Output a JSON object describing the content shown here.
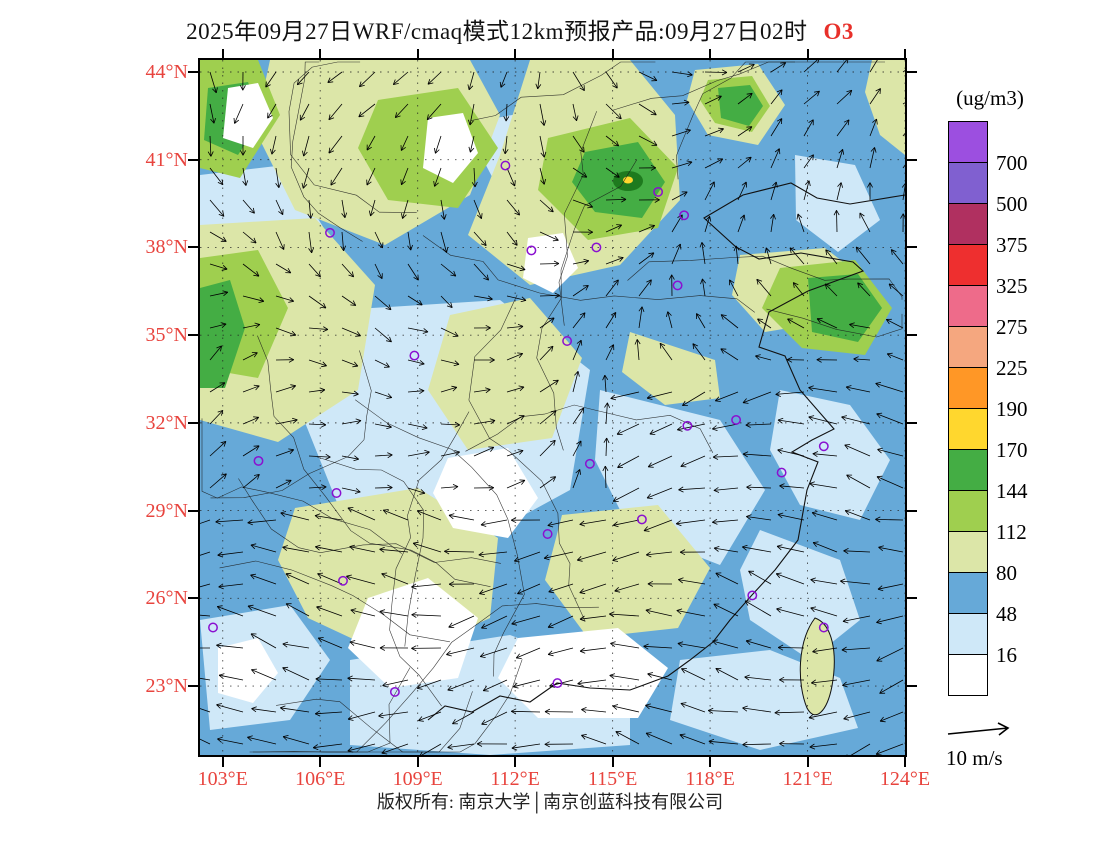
{
  "title": {
    "main": "2025年09月27日WRF/cmaq模式12km预报产品:09月27日02时",
    "species": "O3",
    "species_color": "#e8302a"
  },
  "colorbar": {
    "unit_label": "(ug/m3)",
    "labels_top_to_bottom": [
      "700",
      "500",
      "375",
      "325",
      "275",
      "225",
      "190",
      "170",
      "144",
      "112",
      "80",
      "48",
      "16"
    ],
    "colors_top_to_bottom": [
      "#9c4fe0",
      "#8060d0",
      "#b03060",
      "#ee2f2f",
      "#ee6b8a",
      "#f5a77f",
      "#ff9726",
      "#ffd72e",
      "#44ad44",
      "#9fcf4f",
      "#dce6a8",
      "#66a9d8",
      "#cfe8f8",
      "#ffffff"
    ]
  },
  "axes": {
    "label_color": "#e8443e",
    "lat_labels": [
      "44°N",
      "41°N",
      "38°N",
      "35°N",
      "32°N",
      "29°N",
      "26°N",
      "23°N"
    ],
    "lon_labels": [
      "103°E",
      "106°E",
      "109°E",
      "112°E",
      "115°E",
      "118°E",
      "121°E",
      "124°E"
    ]
  },
  "wind_legend": {
    "label": "10 m/s"
  },
  "footer": {
    "copyright": "版权所有: 南京大学│南京创蓝科技有限公司"
  },
  "chart_data": {
    "type": "heatmap",
    "title": "2025年09月27日WRF/cmaq模式12km预报产品:09月27日02时 O3",
    "species": "O3",
    "units": "ug/m3",
    "model": "WRF/cmaq 12km",
    "valid_time": "2025-09-27 02时",
    "lon_range": [
      103,
      124
    ],
    "lat_range": [
      23,
      44
    ],
    "lon_ticks": [
      103,
      106,
      109,
      112,
      115,
      118,
      121,
      124
    ],
    "lat_ticks_top_to_bottom": [
      44,
      41,
      38,
      35,
      32,
      29,
      26,
      23
    ],
    "contour_levels": [
      16,
      48,
      80,
      112,
      144,
      170,
      190,
      225,
      275,
      325,
      375,
      500,
      700
    ],
    "level_colors_low_to_high": [
      "#ffffff",
      "#cfe8f8",
      "#66a9d8",
      "#dce6a8",
      "#9fcf4f",
      "#44ad44",
      "#ffd72e",
      "#ff9726",
      "#f5a77f",
      "#ee6b8a",
      "#ee2f2f",
      "#b03060",
      "#8060d0",
      "#9c4fe0"
    ],
    "wind_reference_ms": 10,
    "station_markers_lonlat": [
      [
        111.7,
        40.8
      ],
      [
        116.4,
        39.9
      ],
      [
        117.2,
        39.1
      ],
      [
        114.5,
        38.0
      ],
      [
        112.5,
        37.9
      ],
      [
        117.0,
        36.7
      ],
      [
        106.3,
        38.5
      ],
      [
        113.6,
        34.8
      ],
      [
        108.9,
        34.3
      ],
      [
        118.8,
        32.1
      ],
      [
        117.3,
        31.9
      ],
      [
        121.5,
        31.2
      ],
      [
        120.2,
        30.3
      ],
      [
        114.3,
        30.6
      ],
      [
        104.1,
        30.7
      ],
      [
        106.5,
        29.6
      ],
      [
        113.0,
        28.2
      ],
      [
        115.9,
        28.7
      ],
      [
        106.7,
        26.6
      ],
      [
        102.7,
        25.0
      ],
      [
        108.3,
        22.8
      ],
      [
        113.3,
        23.1
      ],
      [
        119.3,
        26.1
      ],
      [
        121.5,
        25.0
      ]
    ],
    "field_summary": [
      {
        "region": "southeast coastal waters and ocean",
        "o3_ug_m3": "48-80 with 16-48 patches"
      },
      {
        "region": "northern land 35N-44N",
        "o3_ug_m3": "80-170, local maxima 170-225 near 113-115E / 40N"
      },
      {
        "region": "central and southern land",
        "o3_ug_m3": "<16-80 with scattered 80-144 patches"
      }
    ]
  }
}
